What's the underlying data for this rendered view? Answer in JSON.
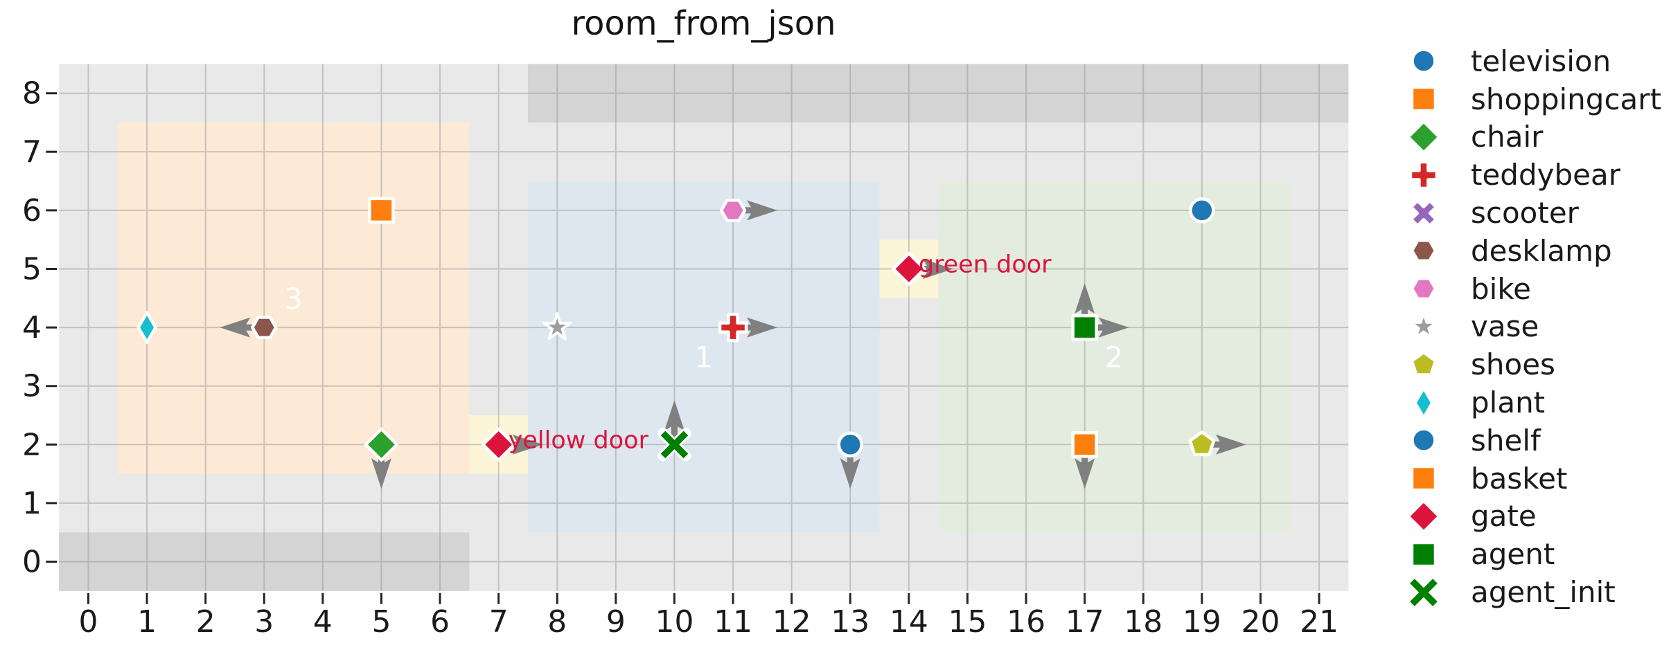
{
  "chart_data": {
    "type": "scatter",
    "title": "room_from_json",
    "xlabel": "",
    "ylabel": "",
    "xlim": [
      -0.5,
      21.5
    ],
    "ylim": [
      -0.5,
      8.5
    ],
    "xticks": [
      0,
      1,
      2,
      3,
      4,
      5,
      6,
      7,
      8,
      9,
      10,
      11,
      12,
      13,
      14,
      15,
      16,
      17,
      18,
      19,
      20,
      21
    ],
    "yticks": [
      0,
      1,
      2,
      3,
      4,
      5,
      6,
      7,
      8
    ],
    "grid": true,
    "aspect": "equal",
    "legend_position": "right-outside",
    "colors": {
      "plot_bg": "#e9e9e9",
      "grid": "#8c8c8c",
      "wall": "#d4d4d4",
      "room_1_fill": "#dee7ef",
      "room_2_fill": "#e4ecdf",
      "room_3_fill": "#fce9d6",
      "door_patch": "#fdf5d7",
      "door_text": "#dc143c",
      "arrow": "#808080",
      "room_label_text": "#ffffff",
      "tick_text": "#1a1a1a",
      "marker_edge": "#ffffff"
    },
    "rooms": [
      {
        "label": "3",
        "x0": 0.5,
        "y0": 1.5,
        "x1": 6.5,
        "y1": 7.5,
        "fill": "#fce9d6",
        "label_x": 3.5,
        "label_y": 4.5
      },
      {
        "label": "1",
        "x0": 7.5,
        "y0": 0.5,
        "x1": 13.5,
        "y1": 6.5,
        "fill": "#dee7ef",
        "label_x": 10.5,
        "label_y": 3.5
      },
      {
        "label": "2",
        "x0": 14.5,
        "y0": 0.5,
        "x1": 20.5,
        "y1": 6.5,
        "fill": "#e4ecdf",
        "label_x": 17.5,
        "label_y": 3.5
      }
    ],
    "walls": [
      {
        "name": "wall-top",
        "x0": 7.5,
        "y0": 7.5,
        "x1": 21.5,
        "y1": 8.5
      },
      {
        "name": "wall-bottom-left",
        "x0": -0.5,
        "y0": -0.5,
        "x1": 6.5,
        "y1": 0.5
      }
    ],
    "doors": [
      {
        "name": "gate",
        "label": "yellow door",
        "x": 7,
        "y": 2,
        "marker": "diamond",
        "color": "#dc143c",
        "arrows": [
          "right"
        ]
      },
      {
        "name": "gate",
        "label": "green door",
        "x": 14,
        "y": 5,
        "marker": "diamond",
        "color": "#dc143c",
        "arrows": [
          "right"
        ]
      }
    ],
    "objects": [
      {
        "name": "television",
        "x": 19,
        "y": 6,
        "marker": "circle",
        "color": "#1f77b4",
        "arrows": []
      },
      {
        "name": "shoppingcart",
        "x": 5,
        "y": 6,
        "marker": "square",
        "color": "#ff7f0e",
        "arrows": []
      },
      {
        "name": "chair",
        "x": 5,
        "y": 2,
        "marker": "diamond",
        "color": "#2ca02c",
        "arrows": [
          "down"
        ]
      },
      {
        "name": "teddybear",
        "x": 11,
        "y": 4,
        "marker": "plus",
        "color": "#d62728",
        "arrows": [
          "right"
        ]
      },
      {
        "name": "desklamp",
        "x": 3,
        "y": 4,
        "marker": "hexagon",
        "color": "#8c564b",
        "arrows": [
          "left"
        ]
      },
      {
        "name": "bike",
        "x": 11,
        "y": 6,
        "marker": "hexagon",
        "color": "#e377c2",
        "arrows": [
          "right"
        ]
      },
      {
        "name": "vase",
        "x": 8,
        "y": 4,
        "marker": "star",
        "color": "#9e9e9e",
        "arrows": []
      },
      {
        "name": "shoes",
        "x": 19,
        "y": 2,
        "marker": "pentagon",
        "color": "#bcbd22",
        "arrows": [
          "right"
        ]
      },
      {
        "name": "plant",
        "x": 1,
        "y": 4,
        "marker": "thin-diamond",
        "color": "#17becf",
        "arrows": []
      },
      {
        "name": "shelf",
        "x": 13,
        "y": 2,
        "marker": "circle",
        "color": "#1f77b4",
        "arrows": [
          "down"
        ]
      },
      {
        "name": "basket",
        "x": 17,
        "y": 2,
        "marker": "square",
        "color": "#ff7f0e",
        "arrows": [
          "down"
        ]
      },
      {
        "name": "agent",
        "x": 17,
        "y": 4,
        "marker": "square",
        "color": "#008000",
        "arrows": [
          "up",
          "right"
        ]
      },
      {
        "name": "agent_init",
        "x": 10,
        "y": 2,
        "marker": "x-stroke",
        "color": "#008000",
        "arrows": [
          "up"
        ]
      }
    ],
    "legend": [
      {
        "label": "television",
        "marker": "circle",
        "color": "#1f77b4"
      },
      {
        "label": "shoppingcart",
        "marker": "square",
        "color": "#ff7f0e"
      },
      {
        "label": "chair",
        "marker": "diamond",
        "color": "#2ca02c"
      },
      {
        "label": "teddybear",
        "marker": "plus",
        "color": "#d62728"
      },
      {
        "label": "scooter",
        "marker": "x-filled",
        "color": "#9467bd"
      },
      {
        "label": "desklamp",
        "marker": "hexagon",
        "color": "#8c564b"
      },
      {
        "label": "bike",
        "marker": "hexagon",
        "color": "#e377c2"
      },
      {
        "label": "vase",
        "marker": "star",
        "color": "#9e9e9e"
      },
      {
        "label": "shoes",
        "marker": "pentagon",
        "color": "#bcbd22"
      },
      {
        "label": "plant",
        "marker": "thin-diamond",
        "color": "#17becf"
      },
      {
        "label": "shelf",
        "marker": "circle",
        "color": "#1f77b4"
      },
      {
        "label": "basket",
        "marker": "square",
        "color": "#ff7f0e"
      },
      {
        "label": "gate",
        "marker": "diamond",
        "color": "#dc143c"
      },
      {
        "label": "agent",
        "marker": "square",
        "color": "#008000"
      },
      {
        "label": "agent_init",
        "marker": "x-stroke",
        "color": "#008000"
      }
    ]
  }
}
